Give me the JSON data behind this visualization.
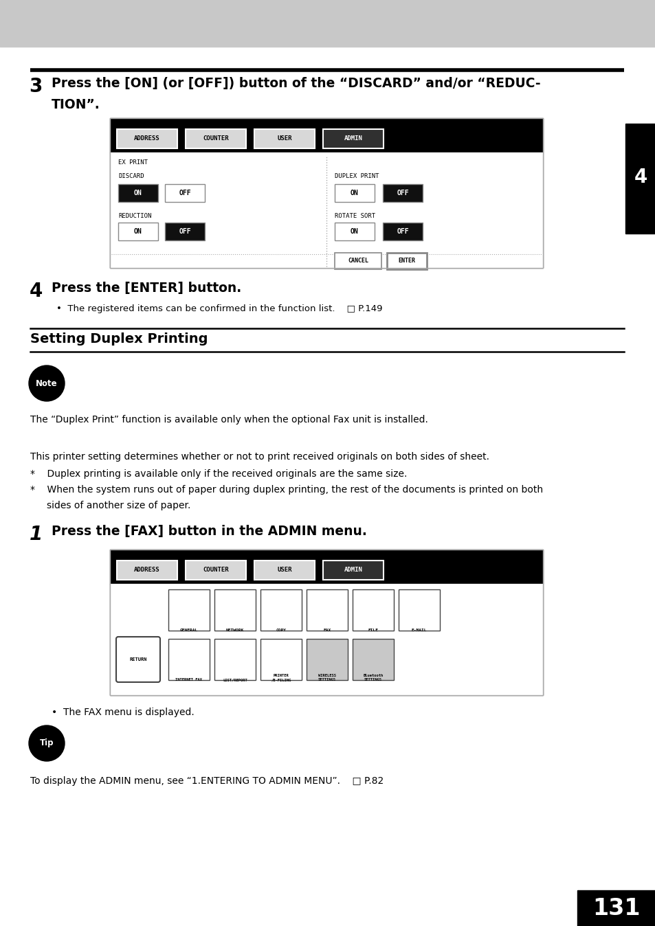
{
  "bg_color": "#ffffff",
  "header_bar_color": "#c8c8c8",
  "page_number": "131",
  "chapter_tab_text": "4",
  "step3_line1": "Press the [ON] (or [OFF]) button of the “DISCARD” and/or “REDUC-",
  "step3_line2": "TION”.",
  "step4_title": "Press the [ENTER] button.",
  "step4_bullet": "The registered items can be confirmed in the function list.    □ P.149",
  "section_title": "Setting Duplex Printing",
  "note_label": "Note",
  "note_text": "The “Duplex Print” function is available only when the optional Fax unit is installed.",
  "body_text1": "This printer setting determines whether or not to print received originals on both sides of sheet.",
  "bullet1": "Duplex printing is available only if the received originals are the same size.",
  "bullet2a": "When the system runs out of paper during duplex printing, the rest of the documents is printed on both",
  "bullet2b": "sides of another size of paper.",
  "step1_title": "Press the [FAX] button in the ADMIN menu.",
  "fax_bullet": "The FAX menu is displayed.",
  "tip_label": "Tip",
  "tip_text": "To display the ADMIN menu, see “1.ENTERING TO ADMIN MENU”.    □ P.82"
}
